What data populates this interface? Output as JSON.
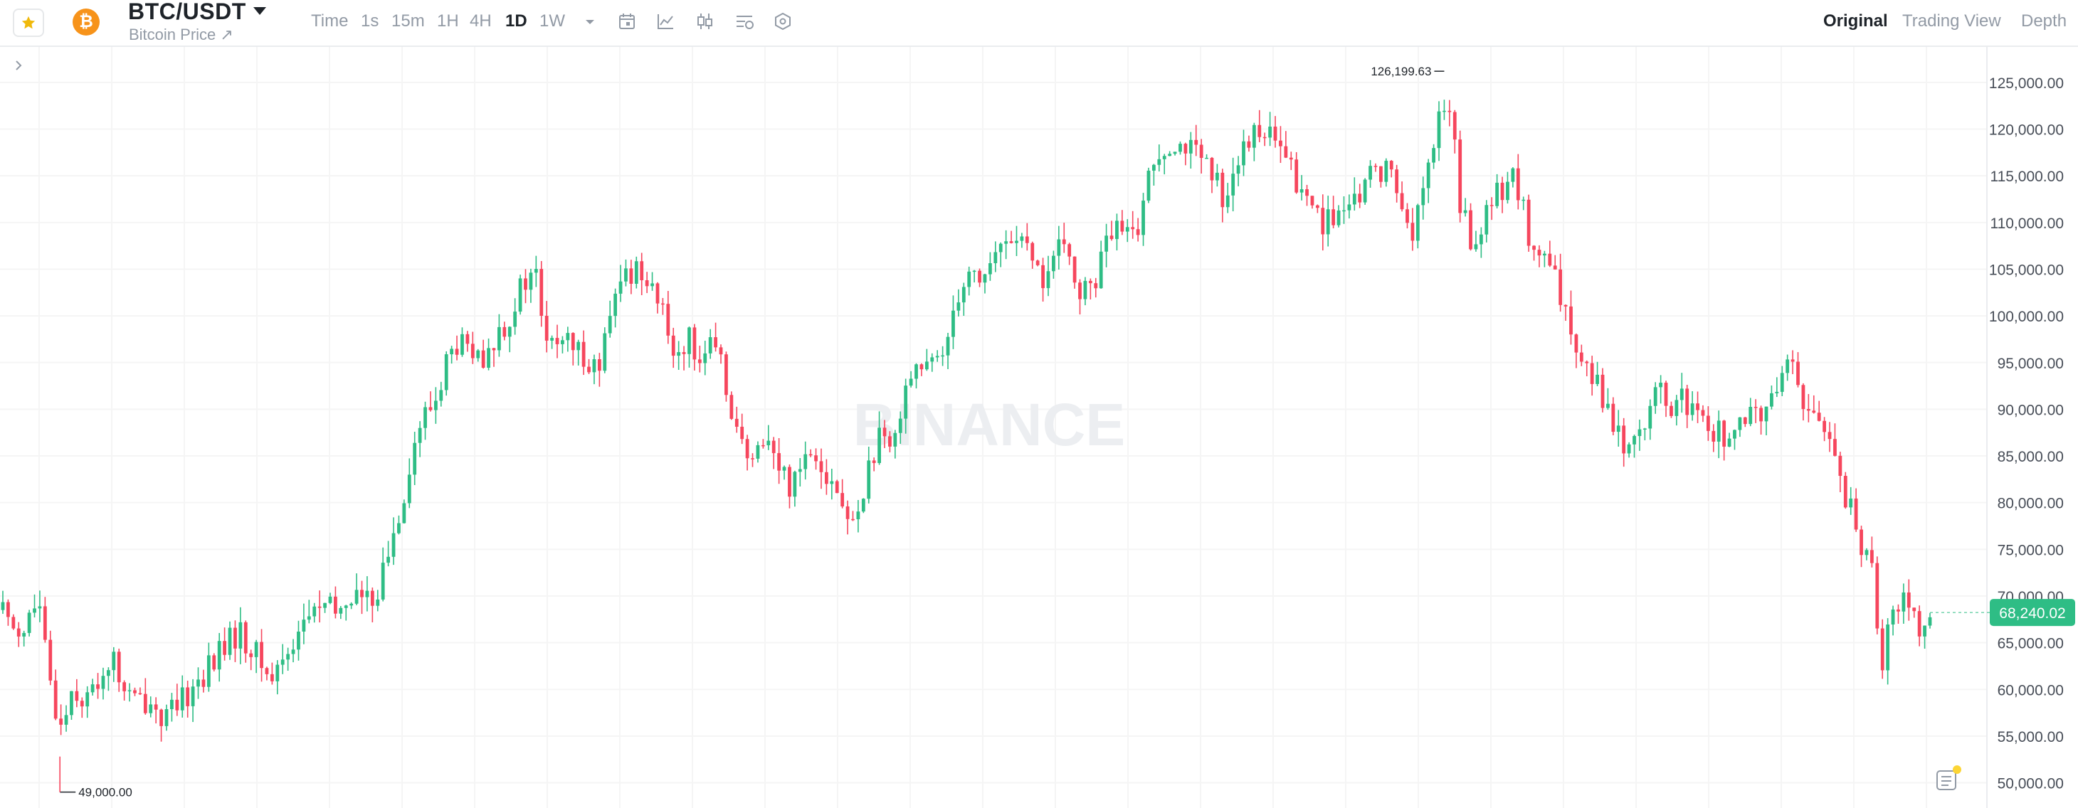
{
  "header": {
    "symbol": "BTC/USDT",
    "subtitle": "Bitcoin Price ↗",
    "timeframes": [
      "Time",
      "1s",
      "15m",
      "1H",
      "4H",
      "1D",
      "1W"
    ],
    "active_timeframe": "1D",
    "views": [
      "Original",
      "Trading View",
      "Depth"
    ],
    "active_view": "Original"
  },
  "icons": [
    "star-icon",
    "bitcoin-icon",
    "chevron-down-icon",
    "calendar-icon",
    "indicator-icon",
    "candle-type-icon",
    "settings-icon",
    "hexagon-icon",
    "chevron-right-icon",
    "note-icon"
  ],
  "colors": {
    "up": "#2ebd85",
    "down": "#f6465d",
    "last_price_bg": "#2ebd85",
    "fav_star": "#f0b90b",
    "coin": "#f7931a"
  },
  "chart_data": {
    "type": "candlestick",
    "watermark": "BINANCE",
    "y_axis_ticks": [
      "125,000.00",
      "120,000.00",
      "115,000.00",
      "110,000.00",
      "105,000.00",
      "100,000.00",
      "95,000.00",
      "90,000.00",
      "85,000.00",
      "80,000.00",
      "75,000.00",
      "70,000.00",
      "65,000.00",
      "60,000.00",
      "55,000.00",
      "50,000.00"
    ],
    "ylim": [
      47300,
      128800
    ],
    "high_label": "126,199.63",
    "low_label": "49,000.00",
    "last_price": "68,240.02",
    "last_price_value": 68240.02,
    "candle_count": 366,
    "grid": true,
    "close_path": [
      [
        0,
        68500
      ],
      [
        12,
        66200
      ],
      [
        22,
        69500
      ],
      [
        30,
        60000
      ],
      [
        36,
        56000
      ],
      [
        44,
        60500
      ],
      [
        52,
        58500
      ],
      [
        60,
        61000
      ],
      [
        68,
        63500
      ],
      [
        76,
        60000
      ],
      [
        84,
        58500
      ],
      [
        92,
        59000
      ],
      [
        100,
        57000
      ],
      [
        108,
        57500
      ],
      [
        118,
        60000
      ],
      [
        128,
        62000
      ],
      [
        138,
        64500
      ],
      [
        148,
        66000
      ],
      [
        158,
        64000
      ],
      [
        168,
        61000
      ],
      [
        178,
        64000
      ],
      [
        188,
        67000
      ],
      [
        198,
        69000
      ],
      [
        210,
        68000
      ],
      [
        220,
        70500
      ],
      [
        230,
        69000
      ],
      [
        240,
        73000
      ],
      [
        250,
        80000
      ],
      [
        258,
        86000
      ],
      [
        264,
        89000
      ],
      [
        272,
        91000
      ],
      [
        278,
        95000
      ],
      [
        286,
        97000
      ],
      [
        294,
        96000
      ],
      [
        302,
        94000
      ],
      [
        310,
        98000
      ],
      [
        318,
        100000
      ],
      [
        326,
        103000
      ],
      [
        334,
        105000
      ],
      [
        342,
        96000
      ],
      [
        350,
        98000
      ],
      [
        358,
        96000
      ],
      [
        366,
        96000
      ],
      [
        374,
        94000
      ],
      [
        382,
        100000
      ],
      [
        390,
        104500
      ],
      [
        398,
        105000
      ],
      [
        406,
        104500
      ],
      [
        414,
        100000
      ],
      [
        422,
        96000
      ],
      [
        430,
        97500
      ],
      [
        438,
        96000
      ],
      [
        446,
        96500
      ],
      [
        454,
        93000
      ],
      [
        462,
        87000
      ],
      [
        470,
        83000
      ],
      [
        478,
        88000
      ],
      [
        486,
        84000
      ],
      [
        494,
        82000
      ],
      [
        502,
        85000
      ],
      [
        510,
        86000
      ],
      [
        518,
        83000
      ],
      [
        526,
        80000
      ],
      [
        534,
        77000
      ],
      [
        542,
        83000
      ],
      [
        550,
        86500
      ],
      [
        558,
        85000
      ],
      [
        566,
        93000
      ],
      [
        574,
        95000
      ],
      [
        582,
        94000
      ],
      [
        590,
        96000
      ],
      [
        598,
        102000
      ],
      [
        606,
        105000
      ],
      [
        614,
        104000
      ],
      [
        622,
        106000
      ],
      [
        630,
        108000
      ],
      [
        638,
        109000
      ],
      [
        646,
        105000
      ],
      [
        654,
        104000
      ],
      [
        662,
        107000
      ],
      [
        670,
        106000
      ],
      [
        678,
        102000
      ],
      [
        686,
        104000
      ],
      [
        694,
        108500
      ],
      [
        702,
        109000
      ],
      [
        710,
        108000
      ],
      [
        718,
        114000
      ],
      [
        726,
        118000
      ],
      [
        734,
        119000
      ],
      [
        742,
        118500
      ],
      [
        750,
        117000
      ],
      [
        758,
        115000
      ],
      [
        766,
        113000
      ],
      [
        774,
        116000
      ],
      [
        782,
        118000
      ],
      [
        790,
        121000
      ],
      [
        798,
        118000
      ],
      [
        806,
        117000
      ],
      [
        814,
        113000
      ],
      [
        822,
        112000
      ],
      [
        830,
        110000
      ],
      [
        838,
        111000
      ],
      [
        846,
        110500
      ],
      [
        854,
        114000
      ],
      [
        862,
        115500
      ],
      [
        870,
        116000
      ],
      [
        878,
        112000
      ],
      [
        886,
        109000
      ],
      [
        894,
        115000
      ],
      [
        902,
        121000
      ],
      [
        910,
        123000
      ],
      [
        914,
        112000
      ],
      [
        918,
        110000
      ],
      [
        926,
        107000
      ],
      [
        934,
        112000
      ],
      [
        942,
        114000
      ],
      [
        950,
        115000
      ],
      [
        958,
        108000
      ],
      [
        966,
        106000
      ],
      [
        974,
        104000
      ],
      [
        982,
        99000
      ],
      [
        990,
        97000
      ],
      [
        998,
        94000
      ],
      [
        1006,
        91000
      ],
      [
        1014,
        87000
      ],
      [
        1022,
        86000
      ],
      [
        1030,
        89000
      ],
      [
        1038,
        92000
      ],
      [
        1046,
        90000
      ],
      [
        1054,
        91000
      ],
      [
        1062,
        89000
      ],
      [
        1070,
        88000
      ],
      [
        1078,
        87500
      ],
      [
        1086,
        87000
      ],
      [
        1094,
        88000
      ],
      [
        1102,
        90000
      ],
      [
        1110,
        90000
      ],
      [
        1118,
        96000
      ],
      [
        1126,
        93000
      ],
      [
        1134,
        90000
      ],
      [
        1142,
        88000
      ],
      [
        1150,
        86000
      ],
      [
        1158,
        80000
      ],
      [
        1166,
        76000
      ],
      [
        1174,
        72000
      ],
      [
        1180,
        63500
      ],
      [
        1186,
        68000
      ],
      [
        1194,
        70000
      ],
      [
        1202,
        67000
      ],
      [
        1210,
        68240
      ]
    ]
  }
}
